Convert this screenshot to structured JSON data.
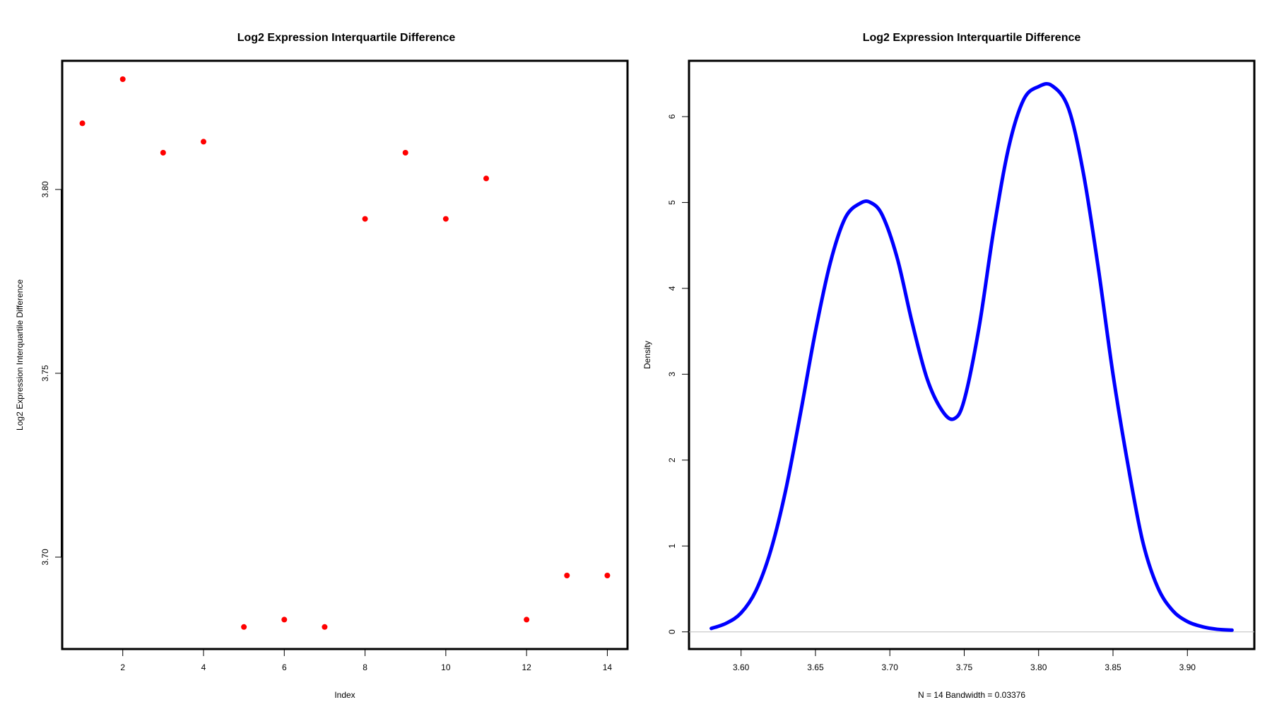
{
  "chart_data": [
    {
      "type": "scatter",
      "title": "Log2 Expression Interquartile Difference",
      "xlabel": "Index",
      "ylabel": "Log2 Expression Interquartile Difference",
      "xlim": [
        0.5,
        14.5
      ],
      "ylim": [
        3.675,
        3.835
      ],
      "xticks": [
        2,
        4,
        6,
        8,
        10,
        12,
        14
      ],
      "yticks": [
        3.7,
        3.75,
        3.8
      ],
      "ytick_labels": [
        "3.70",
        "3.75",
        "3.80"
      ],
      "point_color": "#ff0000",
      "x": [
        1,
        2,
        3,
        4,
        5,
        6,
        7,
        8,
        9,
        10,
        11,
        12,
        13,
        14
      ],
      "y": [
        3.818,
        3.83,
        3.81,
        3.813,
        3.681,
        3.683,
        3.681,
        3.792,
        3.81,
        3.792,
        3.803,
        3.683,
        3.695,
        3.695
      ],
      "grid": false
    },
    {
      "type": "line",
      "title": "Log2 Expression Interquartile Difference",
      "xlabel": "N = 14   Bandwidth = 0.03376",
      "ylabel": "Density",
      "xlim": [
        3.565,
        3.945
      ],
      "ylim": [
        -0.2,
        6.65
      ],
      "xticks": [
        3.6,
        3.65,
        3.7,
        3.75,
        3.8,
        3.85,
        3.9
      ],
      "xtick_labels": [
        "3.60",
        "3.65",
        "3.70",
        "3.75",
        "3.80",
        "3.85",
        "3.90"
      ],
      "yticks": [
        0,
        1,
        2,
        3,
        4,
        5,
        6
      ],
      "ytick_labels": [
        "0",
        "1",
        "2",
        "3",
        "4",
        "5",
        "6"
      ],
      "line_color": "#0000ff",
      "baseline_color": "#bebebe",
      "x": [
        3.58,
        3.59,
        3.6,
        3.61,
        3.62,
        3.63,
        3.64,
        3.65,
        3.66,
        3.67,
        3.68,
        3.687,
        3.695,
        3.705,
        3.715,
        3.725,
        3.735,
        3.743,
        3.75,
        3.76,
        3.77,
        3.78,
        3.79,
        3.8,
        3.809,
        3.82,
        3.83,
        3.84,
        3.85,
        3.86,
        3.87,
        3.88,
        3.89,
        3.9,
        3.91,
        3.92,
        3.93
      ],
      "y": [
        0.04,
        0.1,
        0.22,
        0.48,
        0.95,
        1.65,
        2.55,
        3.5,
        4.3,
        4.82,
        4.99,
        5.0,
        4.85,
        4.35,
        3.6,
        2.95,
        2.58,
        2.48,
        2.7,
        3.55,
        4.7,
        5.65,
        6.2,
        6.35,
        6.36,
        6.1,
        5.35,
        4.25,
        3.0,
        1.95,
        1.05,
        0.52,
        0.25,
        0.12,
        0.06,
        0.03,
        0.02
      ],
      "grid": false
    }
  ]
}
